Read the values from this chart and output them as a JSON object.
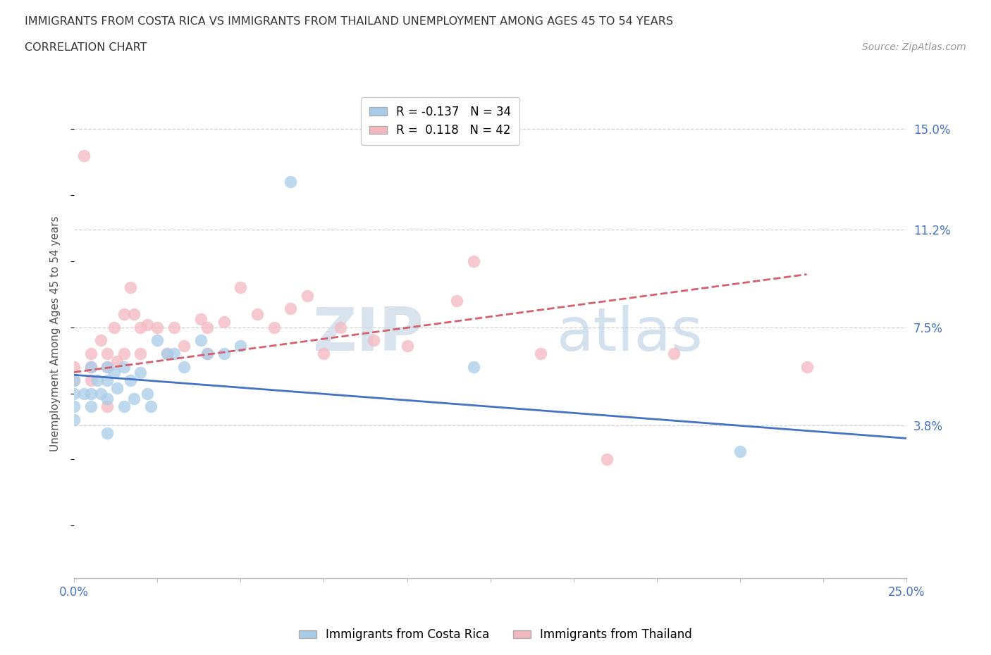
{
  "title_line1": "IMMIGRANTS FROM COSTA RICA VS IMMIGRANTS FROM THAILAND UNEMPLOYMENT AMONG AGES 45 TO 54 YEARS",
  "title_line2": "CORRELATION CHART",
  "source_text": "Source: ZipAtlas.com",
  "ylabel": "Unemployment Among Ages 45 to 54 years",
  "xlim": [
    0.0,
    0.25
  ],
  "ylim": [
    -0.02,
    0.165
  ],
  "yticks": [
    0.038,
    0.075,
    0.112,
    0.15
  ],
  "ytick_labels": [
    "3.8%",
    "7.5%",
    "11.2%",
    "15.0%"
  ],
  "xticks": [
    0.0,
    0.025,
    0.05,
    0.075,
    0.1,
    0.125,
    0.15,
    0.175,
    0.2,
    0.225,
    0.25
  ],
  "xtick_labels": [
    "0.0%",
    "",
    "",
    "",
    "",
    "",
    "",
    "",
    "",
    "",
    "25.0%"
  ],
  "legend_r1": "R = -0.137   N = 34",
  "legend_r2": "R =  0.118   N = 42",
  "color_costa_rica": "#a8cce8",
  "color_thailand": "#f4b8c1",
  "color_line_costa_rica": "#4472c4",
  "color_line_thailand": "#d45f6e",
  "grid_color": "#d0d0d0",
  "background_color": "#ffffff",
  "watermark_zip": "ZIP",
  "watermark_atlas": "atlas",
  "costa_rica_x": [
    0.0,
    0.0,
    0.0,
    0.0,
    0.003,
    0.005,
    0.005,
    0.005,
    0.007,
    0.008,
    0.01,
    0.01,
    0.01,
    0.01,
    0.012,
    0.013,
    0.015,
    0.015,
    0.017,
    0.018,
    0.02,
    0.022,
    0.023,
    0.025,
    0.028,
    0.03,
    0.033,
    0.038,
    0.04,
    0.045,
    0.05,
    0.065,
    0.12,
    0.2
  ],
  "costa_rica_y": [
    0.055,
    0.05,
    0.045,
    0.04,
    0.05,
    0.06,
    0.05,
    0.045,
    0.055,
    0.05,
    0.06,
    0.055,
    0.048,
    0.035,
    0.058,
    0.052,
    0.06,
    0.045,
    0.055,
    0.048,
    0.058,
    0.05,
    0.045,
    0.07,
    0.065,
    0.065,
    0.06,
    0.07,
    0.065,
    0.065,
    0.068,
    0.13,
    0.06,
    0.028
  ],
  "thailand_x": [
    0.0,
    0.0,
    0.003,
    0.005,
    0.005,
    0.005,
    0.008,
    0.01,
    0.01,
    0.01,
    0.012,
    0.013,
    0.015,
    0.015,
    0.017,
    0.018,
    0.02,
    0.02,
    0.022,
    0.025,
    0.028,
    0.03,
    0.033,
    0.038,
    0.04,
    0.04,
    0.045,
    0.05,
    0.055,
    0.06,
    0.065,
    0.07,
    0.075,
    0.08,
    0.09,
    0.1,
    0.115,
    0.12,
    0.14,
    0.16,
    0.18,
    0.22
  ],
  "thailand_y": [
    0.06,
    0.055,
    0.14,
    0.065,
    0.06,
    0.055,
    0.07,
    0.065,
    0.06,
    0.045,
    0.075,
    0.062,
    0.08,
    0.065,
    0.09,
    0.08,
    0.075,
    0.065,
    0.076,
    0.075,
    0.065,
    0.075,
    0.068,
    0.078,
    0.075,
    0.065,
    0.077,
    0.09,
    0.08,
    0.075,
    0.082,
    0.087,
    0.065,
    0.075,
    0.07,
    0.068,
    0.085,
    0.1,
    0.065,
    0.025,
    0.065,
    0.06
  ],
  "cr_trend_x0": 0.0,
  "cr_trend_x1": 0.25,
  "cr_trend_y0": 0.057,
  "cr_trend_y1": 0.033,
  "th_trend_x0": 0.0,
  "th_trend_x1": 0.22,
  "th_trend_y0": 0.058,
  "th_trend_y1": 0.095
}
